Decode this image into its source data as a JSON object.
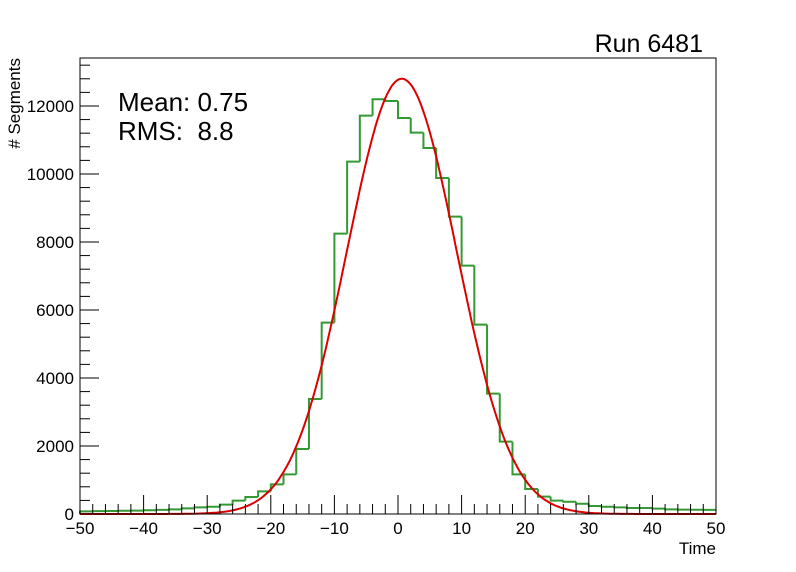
{
  "chart_data": {
    "type": "bar",
    "subtype": "histogram-with-gaussian-fit",
    "title": "Run 6481",
    "xlabel": "Time",
    "ylabel": "# Segments",
    "xlim": [
      -50,
      50
    ],
    "ylim": [
      0,
      13411
    ],
    "x_ticks": [
      -50,
      -40,
      -30,
      -20,
      -10,
      0,
      10,
      20,
      30,
      40,
      50
    ],
    "x_tick_labels": [
      "−50",
      "−40",
      "−30",
      "−20",
      "−10",
      "0",
      "10",
      "20",
      "30",
      "40",
      "50"
    ],
    "y_ticks": [
      0,
      2000,
      4000,
      6000,
      8000,
      10000,
      12000
    ],
    "y_tick_labels": [
      "0",
      "2000",
      "4000",
      "6000",
      "8000",
      "10000",
      "12000"
    ],
    "bin_width": 2,
    "bin_low_edges": [
      -50,
      -48,
      -46,
      -44,
      -42,
      -40,
      -38,
      -36,
      -34,
      -32,
      -30,
      -28,
      -26,
      -24,
      -22,
      -20,
      -18,
      -16,
      -14,
      -12,
      -10,
      -8,
      -6,
      -4,
      -2,
      0,
      2,
      4,
      6,
      8,
      10,
      12,
      14,
      16,
      18,
      20,
      22,
      24,
      26,
      28,
      30,
      32,
      34,
      36,
      38,
      40,
      42,
      44,
      46,
      48
    ],
    "series": [
      {
        "name": "histogram",
        "color": "#339933",
        "values": [
          78,
          85,
          90,
          95,
          98,
          110,
          120,
          137,
          167,
          196,
          215,
          275,
          392,
          500,
          667,
          873,
          1167,
          1912,
          3382,
          5627,
          8245,
          10363,
          11716,
          12196,
          12147,
          11647,
          11215,
          10765,
          9882,
          8745,
          7304,
          5569,
          3539,
          2127,
          1167,
          735,
          510,
          392,
          362,
          303,
          235,
          215,
          196,
          176,
          176,
          157,
          137,
          130,
          125,
          120
        ]
      },
      {
        "name": "gaussian-fit",
        "color": "#dd0000",
        "type": "line",
        "amplitude": 12800,
        "mean": 0.6,
        "sigma": 8.6
      }
    ],
    "stats": {
      "mean_label": "Mean: 0.75",
      "rms_label": "RMS:  8.8"
    },
    "grid": false,
    "legend": "none"
  }
}
